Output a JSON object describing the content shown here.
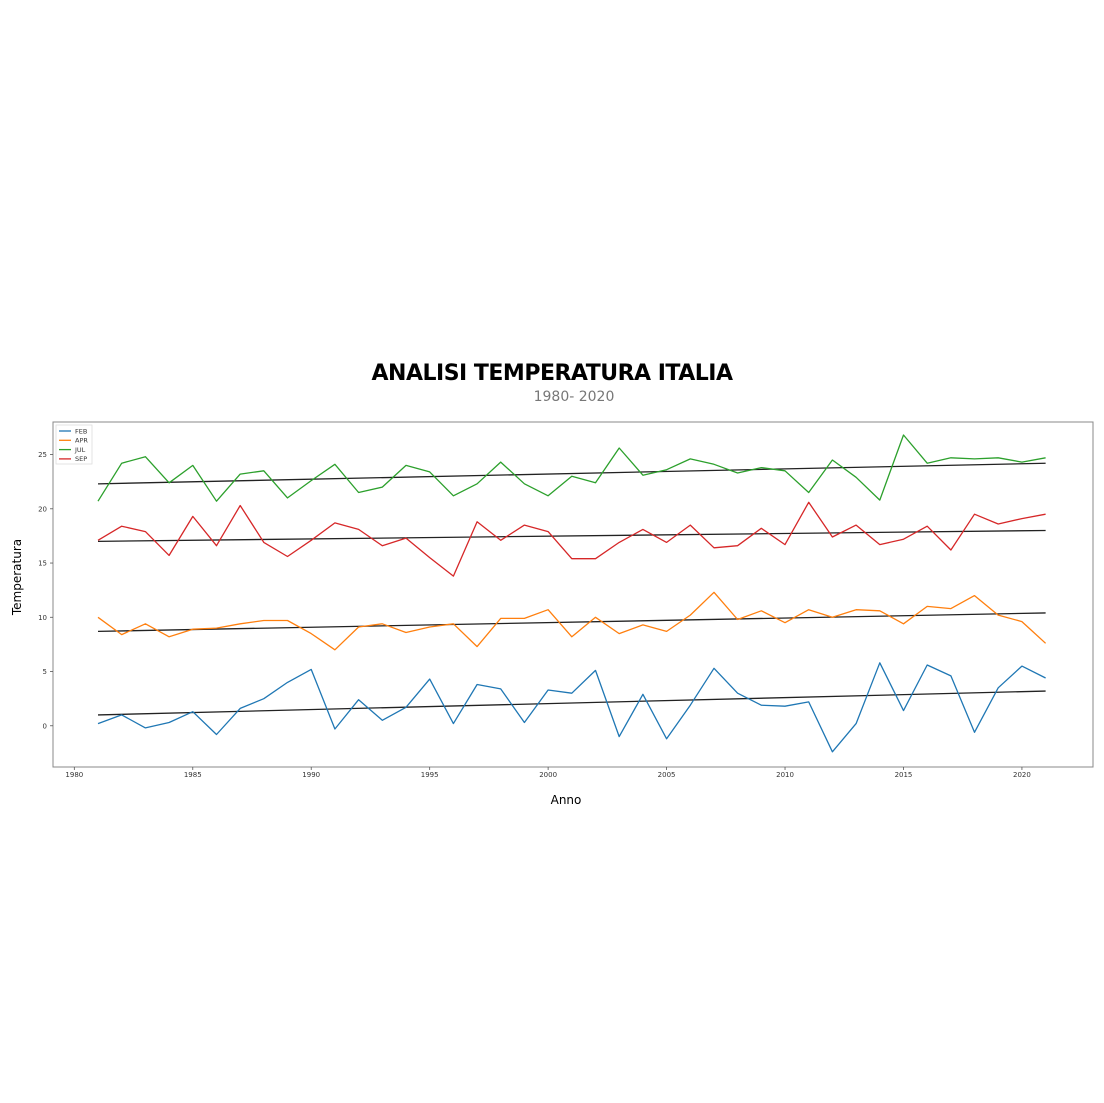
{
  "chart_data": {
    "type": "line",
    "title": "ANALISI TEMPERATURA ITALIA",
    "subtitle": "1980- 2020",
    "xlabel": "Anno",
    "ylabel": "Temperatura",
    "xlim": [
      1979.1,
      2023
    ],
    "ylim": [
      -3.8,
      28
    ],
    "xticks": [
      1980,
      1985,
      1990,
      1995,
      2000,
      2005,
      2010,
      2015,
      2020
    ],
    "yticks": [
      0,
      5,
      10,
      15,
      20,
      25
    ],
    "legend_position": "top-left",
    "x": [
      1981,
      1982,
      1983,
      1984,
      1985,
      1986,
      1987,
      1988,
      1989,
      1990,
      1991,
      1992,
      1993,
      1994,
      1995,
      1996,
      1997,
      1998,
      1999,
      2000,
      2001,
      2002,
      2003,
      2004,
      2005,
      2006,
      2007,
      2008,
      2009,
      2010,
      2011,
      2012,
      2013,
      2014,
      2015,
      2016,
      2017,
      2018,
      2019,
      2020,
      2021
    ],
    "series": [
      {
        "name": "FEB",
        "color": "#1f77b4",
        "values": [
          0.2,
          1.0,
          -0.2,
          0.3,
          1.3,
          -0.8,
          1.6,
          2.5,
          4.0,
          5.2,
          -0.3,
          2.4,
          0.5,
          1.7,
          4.3,
          0.2,
          3.8,
          3.4,
          0.3,
          3.3,
          3.0,
          5.1,
          -1.0,
          2.9,
          -1.2,
          1.9,
          5.3,
          3.0,
          1.9,
          1.8,
          2.2,
          -2.4,
          0.2,
          5.8,
          1.4,
          5.6,
          4.6,
          -0.6,
          3.5,
          5.5,
          4.4
        ],
        "trend": [
          1.0,
          3.2
        ]
      },
      {
        "name": "APR",
        "color": "#ff7f0e",
        "values": [
          10.0,
          8.4,
          9.4,
          8.2,
          8.9,
          9.0,
          9.4,
          9.7,
          9.7,
          8.5,
          7.0,
          9.1,
          9.4,
          8.6,
          9.1,
          9.4,
          7.3,
          9.9,
          9.9,
          10.7,
          8.2,
          10.0,
          8.5,
          9.3,
          8.7,
          10.2,
          12.3,
          9.8,
          10.6,
          9.5,
          10.7,
          10.0,
          10.7,
          10.6,
          9.4,
          11.0,
          10.8,
          12.0,
          10.2,
          9.6,
          7.6
        ],
        "trend": [
          8.7,
          10.4
        ]
      },
      {
        "name": "JUL",
        "color": "#2ca02c",
        "values": [
          20.7,
          24.2,
          24.8,
          22.4,
          24.0,
          20.7,
          23.2,
          23.5,
          21.0,
          22.6,
          24.1,
          21.5,
          22.0,
          24.0,
          23.4,
          21.2,
          22.3,
          24.3,
          22.3,
          21.2,
          23.0,
          22.4,
          25.6,
          23.1,
          23.6,
          24.6,
          24.1,
          23.3,
          23.8,
          23.5,
          21.5,
          24.5,
          22.9,
          20.8,
          26.8,
          24.2,
          24.7,
          24.6,
          24.7,
          24.3,
          24.7
        ],
        "trend": [
          22.3,
          24.2
        ]
      },
      {
        "name": "SEP",
        "color": "#d62728",
        "values": [
          17.1,
          18.4,
          17.9,
          15.7,
          19.3,
          16.6,
          20.3,
          16.9,
          15.6,
          17.1,
          18.7,
          18.1,
          16.6,
          17.3,
          15.5,
          13.8,
          18.8,
          17.1,
          18.5,
          17.9,
          15.4,
          15.4,
          16.9,
          18.1,
          16.9,
          18.5,
          16.4,
          16.6,
          18.2,
          16.7,
          20.6,
          17.4,
          18.5,
          16.7,
          17.2,
          18.4,
          16.2,
          19.5,
          18.6,
          19.1,
          19.5
        ],
        "trend": [
          17.0,
          18.0
        ]
      }
    ]
  }
}
